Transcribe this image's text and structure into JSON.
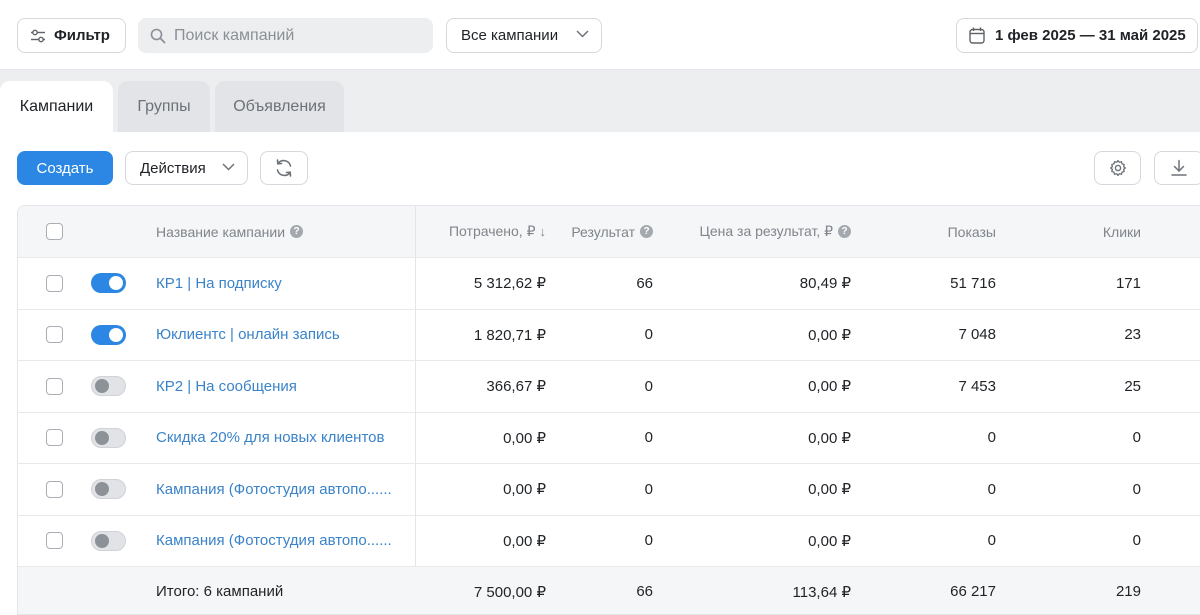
{
  "topbar": {
    "filter_label": "Фильтр",
    "search_placeholder": "Поиск кампаний",
    "campaign_select": "Все кампании",
    "date_range": "1 фев 2025 — 31 май 2025"
  },
  "tabs": [
    {
      "label": "Кампании",
      "active": true
    },
    {
      "label": "Группы",
      "active": false
    },
    {
      "label": "Объявления",
      "active": false
    }
  ],
  "toolbar": {
    "create_label": "Создать",
    "actions_label": "Действия"
  },
  "table": {
    "headers": {
      "name": "Название кампании",
      "spent": "Потрачено, ₽",
      "result": "Результат",
      "price": "Цена за результат, ₽",
      "impressions": "Показы",
      "clicks": "Клики"
    },
    "rows": [
      {
        "name": "КР1 | На подписку",
        "enabled": true,
        "spent": "5 312,62 ₽",
        "result": "66",
        "price": "80,49 ₽",
        "impressions": "51 716",
        "clicks": "171"
      },
      {
        "name": "Юклиентс | онлайн запись",
        "enabled": true,
        "spent": "1 820,71 ₽",
        "result": "0",
        "price": "0,00 ₽",
        "impressions": "7 048",
        "clicks": "23"
      },
      {
        "name": "КР2 | На сообщения",
        "enabled": false,
        "spent": "366,67 ₽",
        "result": "0",
        "price": "0,00 ₽",
        "impressions": "7 453",
        "clicks": "25"
      },
      {
        "name": "Скидка 20% для новых клиентов",
        "enabled": false,
        "spent": "0,00 ₽",
        "result": "0",
        "price": "0,00 ₽",
        "impressions": "0",
        "clicks": "0"
      },
      {
        "name": "Кампания (Фотостудия автопо......",
        "enabled": false,
        "spent": "0,00 ₽",
        "result": "0",
        "price": "0,00 ₽",
        "impressions": "0",
        "clicks": "0"
      },
      {
        "name": "Кампания (Фотостудия автопо......",
        "enabled": false,
        "spent": "0,00 ₽",
        "result": "0",
        "price": "0,00 ₽",
        "impressions": "0",
        "clicks": "0"
      }
    ],
    "total": {
      "label": "Итого: 6 кампаний",
      "spent": "7 500,00 ₽",
      "result": "66",
      "price": "113,64 ₽",
      "impressions": "66 217",
      "clicks": "219"
    }
  },
  "colors": {
    "accent": "#2b87e3",
    "link": "#3a83c9"
  },
  "icons": {
    "filter": "sliders-icon",
    "search": "search-icon",
    "calendar": "calendar-icon",
    "refresh": "refresh-icon",
    "settings": "gear-icon",
    "download": "download-icon",
    "help": "question-icon"
  }
}
